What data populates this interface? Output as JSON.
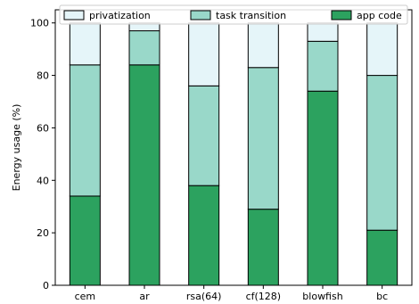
{
  "chart_data": {
    "type": "bar",
    "stacked": true,
    "title": "",
    "xlabel": "",
    "ylabel": "Energy usage (%)",
    "ylim": [
      0,
      105
    ],
    "yticks": [
      0,
      20,
      40,
      60,
      80,
      100
    ],
    "grid": false,
    "legend_position": "top",
    "categories": [
      "cem",
      "ar",
      "rsa(64)",
      "cf(128)",
      "blowfish",
      "bc"
    ],
    "series": [
      {
        "name": "app code",
        "color": "#2ca25f",
        "values": [
          34,
          84,
          38,
          29,
          74,
          21
        ]
      },
      {
        "name": "task transition",
        "color": "#99d8c9",
        "values": [
          50,
          13,
          38,
          54,
          19,
          59
        ]
      },
      {
        "name": "privatization",
        "color": "#e5f5f9",
        "values": [
          16,
          3,
          24,
          17,
          7,
          20
        ]
      }
    ],
    "legend_order": [
      "privatization",
      "task transition",
      "app code"
    ]
  }
}
